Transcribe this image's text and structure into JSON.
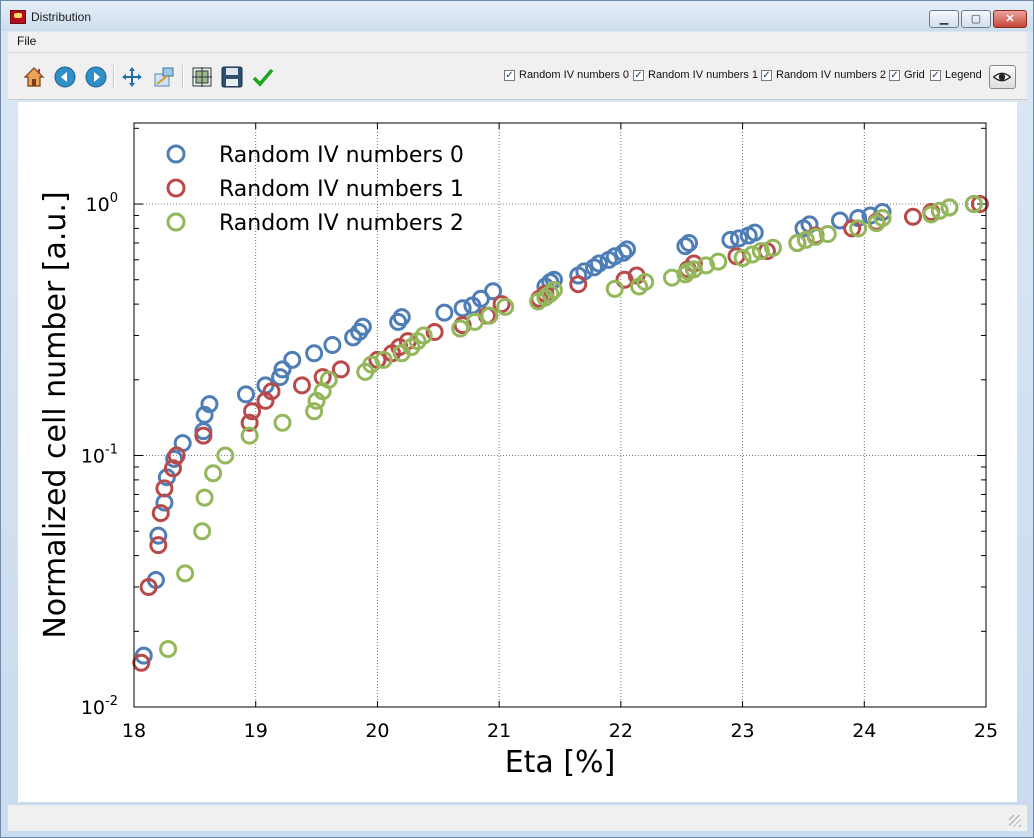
{
  "window": {
    "title": "Distribution",
    "minimize": "▁",
    "maximize": "▢",
    "close": "✕"
  },
  "menu": {
    "file": "File"
  },
  "toolbar": {
    "icons": [
      "home-icon",
      "back-icon",
      "forward-icon",
      "pan-icon",
      "zoom-icon",
      "subplots-icon",
      "save-icon",
      "check-icon"
    ],
    "checkboxes": [
      {
        "label": "Random IV numbers 0",
        "checked": true
      },
      {
        "label": "Random IV numbers 1",
        "checked": true
      },
      {
        "label": "Random IV numbers 2",
        "checked": true
      },
      {
        "label": "Grid",
        "checked": true
      },
      {
        "label": "Legend",
        "checked": true
      }
    ],
    "check_mark": "✓"
  },
  "chart_data": {
    "type": "scatter",
    "xlabel": "Eta [%]",
    "ylabel": "Normalized cell number [a.u.]",
    "xlim": [
      18,
      25
    ],
    "ylim": [
      0.01,
      2.1
    ],
    "yscale": "log",
    "grid": true,
    "legend": "top-left",
    "xticks": [
      "18",
      "19",
      "20",
      "21",
      "22",
      "23",
      "24",
      "25"
    ],
    "yticks": [
      {
        "value": 1,
        "label": "10",
        "exp": "0"
      },
      {
        "value": 0.1,
        "label": "10",
        "exp": "-1"
      },
      {
        "value": 0.01,
        "label": "10",
        "exp": "-2"
      }
    ],
    "series": [
      {
        "name": "Random IV numbers 0",
        "color": "#4f7db5",
        "x": [
          18.08,
          18.18,
          18.2,
          18.25,
          18.27,
          18.33,
          18.4,
          18.57,
          18.58,
          18.62,
          18.92,
          19.08,
          19.2,
          19.22,
          19.3,
          19.48,
          19.63,
          19.8,
          19.85,
          19.88,
          20.17,
          20.2,
          20.55,
          20.7,
          20.78,
          20.85,
          20.95,
          21.38,
          21.42,
          21.45,
          21.65,
          21.7,
          21.78,
          21.82,
          21.9,
          21.95,
          22.02,
          22.05,
          22.53,
          22.56,
          22.9,
          22.97,
          23.05,
          23.1,
          23.5,
          23.55,
          23.8,
          23.95,
          24.05,
          24.15,
          24.7,
          24.9
        ],
        "y": [
          0.016,
          0.032,
          0.048,
          0.065,
          0.082,
          0.097,
          0.112,
          0.125,
          0.145,
          0.16,
          0.175,
          0.19,
          0.205,
          0.22,
          0.24,
          0.255,
          0.275,
          0.295,
          0.31,
          0.325,
          0.34,
          0.355,
          0.37,
          0.385,
          0.395,
          0.42,
          0.45,
          0.47,
          0.49,
          0.5,
          0.52,
          0.54,
          0.56,
          0.58,
          0.6,
          0.62,
          0.64,
          0.66,
          0.68,
          0.7,
          0.72,
          0.73,
          0.75,
          0.77,
          0.8,
          0.83,
          0.86,
          0.88,
          0.9,
          0.93,
          0.97,
          1.0
        ]
      },
      {
        "name": "Random IV numbers 1",
        "color": "#b84a4a",
        "x": [
          18.06,
          18.12,
          18.2,
          18.22,
          18.25,
          18.32,
          18.35,
          18.57,
          18.95,
          18.97,
          19.08,
          19.13,
          19.38,
          19.55,
          19.7,
          20.0,
          20.12,
          20.18,
          20.25,
          20.47,
          20.7,
          20.9,
          21.02,
          21.33,
          21.38,
          21.65,
          22.03,
          22.13,
          22.55,
          22.6,
          22.95,
          23.2,
          23.45,
          23.6,
          23.9,
          24.1,
          24.4,
          24.55,
          24.95
        ],
        "y": [
          0.015,
          0.03,
          0.044,
          0.059,
          0.074,
          0.089,
          0.1,
          0.12,
          0.135,
          0.15,
          0.165,
          0.18,
          0.19,
          0.205,
          0.22,
          0.24,
          0.255,
          0.27,
          0.285,
          0.31,
          0.33,
          0.36,
          0.4,
          0.42,
          0.44,
          0.48,
          0.5,
          0.52,
          0.55,
          0.58,
          0.62,
          0.65,
          0.7,
          0.75,
          0.8,
          0.85,
          0.89,
          0.93,
          1.0
        ]
      },
      {
        "name": "Random IV numbers 2",
        "color": "#93b75a",
        "x": [
          18.28,
          18.42,
          18.56,
          18.58,
          18.65,
          18.75,
          18.95,
          19.22,
          19.48,
          19.5,
          19.55,
          19.6,
          19.9,
          19.95,
          20.05,
          20.2,
          20.28,
          20.33,
          20.38,
          20.68,
          20.8,
          20.92,
          21.05,
          21.32,
          21.38,
          21.42,
          21.45,
          21.95,
          22.15,
          22.2,
          22.42,
          22.53,
          22.55,
          22.6,
          22.7,
          22.8,
          23.0,
          23.08,
          23.15,
          23.25,
          23.45,
          23.52,
          23.6,
          23.7,
          23.95,
          24.1,
          24.15,
          24.55,
          24.62,
          24.7,
          24.9
        ],
        "y": [
          0.017,
          0.034,
          0.05,
          0.068,
          0.085,
          0.1,
          0.12,
          0.135,
          0.15,
          0.165,
          0.18,
          0.2,
          0.215,
          0.23,
          0.24,
          0.255,
          0.27,
          0.285,
          0.3,
          0.32,
          0.34,
          0.36,
          0.39,
          0.41,
          0.425,
          0.44,
          0.455,
          0.46,
          0.47,
          0.49,
          0.51,
          0.525,
          0.54,
          0.55,
          0.57,
          0.59,
          0.61,
          0.63,
          0.65,
          0.67,
          0.7,
          0.72,
          0.74,
          0.76,
          0.8,
          0.84,
          0.88,
          0.91,
          0.94,
          0.97,
          1.0
        ]
      }
    ]
  }
}
